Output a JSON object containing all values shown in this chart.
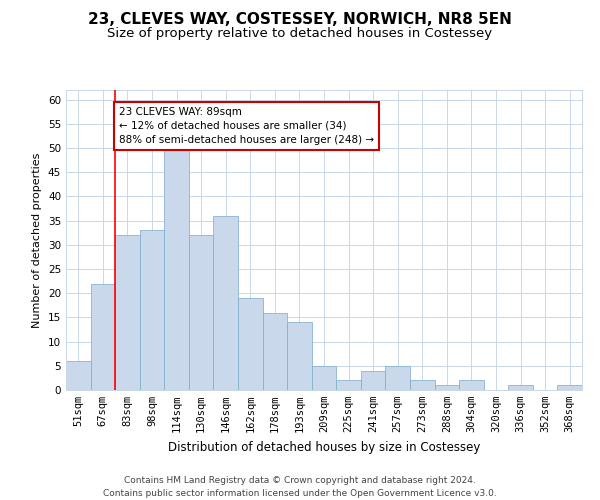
{
  "title1": "23, CLEVES WAY, COSTESSEY, NORWICH, NR8 5EN",
  "title2": "Size of property relative to detached houses in Costessey",
  "xlabel": "Distribution of detached houses by size in Costessey",
  "ylabel": "Number of detached properties",
  "categories": [
    "51sqm",
    "67sqm",
    "83sqm",
    "98sqm",
    "114sqm",
    "130sqm",
    "146sqm",
    "162sqm",
    "178sqm",
    "193sqm",
    "209sqm",
    "225sqm",
    "241sqm",
    "257sqm",
    "273sqm",
    "288sqm",
    "304sqm",
    "320sqm",
    "336sqm",
    "352sqm",
    "368sqm"
  ],
  "bar_heights": [
    6,
    22,
    32,
    33,
    50,
    32,
    36,
    19,
    16,
    14,
    5,
    2,
    4,
    5,
    2,
    1,
    2,
    0,
    1,
    0,
    1
  ],
  "bar_color": "#c9d9eb",
  "bar_edge_color": "#7aaac8",
  "red_line_bin_index": 2,
  "annotation_text": "23 CLEVES WAY: 89sqm\n← 12% of detached houses are smaller (34)\n88% of semi-detached houses are larger (248) →",
  "annotation_box_color": "#ffffff",
  "annotation_box_edge_color": "#cc0000",
  "ylim": [
    0,
    62
  ],
  "yticks": [
    0,
    5,
    10,
    15,
    20,
    25,
    30,
    35,
    40,
    45,
    50,
    55,
    60
  ],
  "footer": "Contains HM Land Registry data © Crown copyright and database right 2024.\nContains public sector information licensed under the Open Government Licence v3.0.",
  "background_color": "#ffffff",
  "grid_color": "#c8d8e8",
  "title1_fontsize": 11,
  "title2_fontsize": 9.5,
  "xlabel_fontsize": 8.5,
  "ylabel_fontsize": 8,
  "tick_fontsize": 7.5,
  "footer_fontsize": 6.5
}
